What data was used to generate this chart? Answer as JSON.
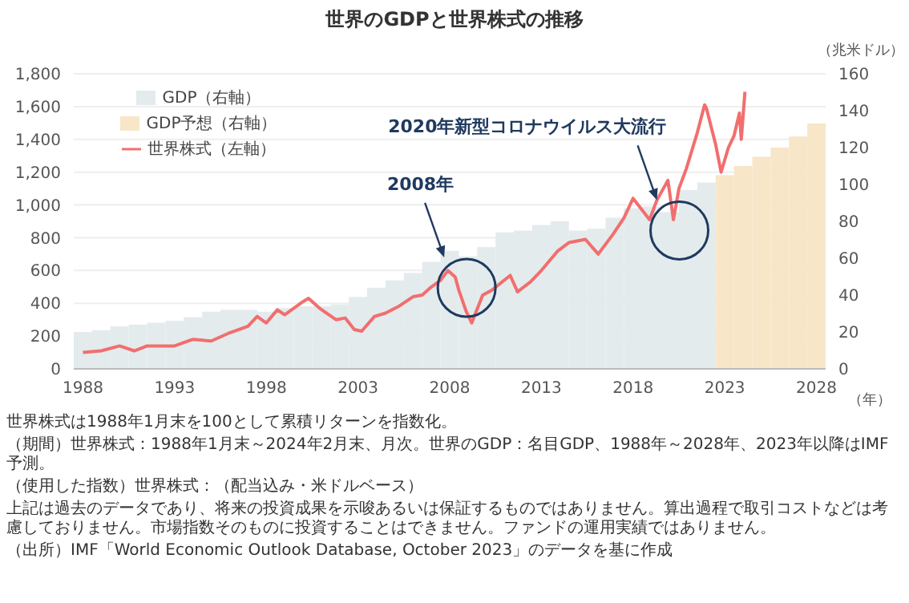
{
  "chart_data": {
    "type": "bar",
    "title": "世界のGDPと世界株式の推移",
    "xlabel": "（年）",
    "y2label": "（兆米ドル）",
    "xlim": [
      1987.5,
      2028.5
    ],
    "xticks": [
      1988,
      1993,
      1998,
      2003,
      2008,
      2013,
      2018,
      2023,
      2028
    ],
    "ylim": [
      0,
      1800
    ],
    "yticks": [
      0,
      200,
      400,
      600,
      800,
      {
        "value": 1000,
        "label": "1,000"
      },
      {
        "value": 1200,
        "label": "1,200"
      },
      {
        "value": 1400,
        "label": "1,400"
      },
      {
        "value": 1600,
        "label": "1,600"
      },
      {
        "value": 1800,
        "label": "1,800"
      }
    ],
    "y2lim": [
      0,
      160
    ],
    "y2ticks": [
      0,
      20,
      40,
      60,
      80,
      100,
      120,
      140,
      160
    ],
    "grid": "y",
    "legend": "top left",
    "series": [
      {
        "name": "GDP（右軸）",
        "axis": "y2",
        "color": "#e3ebed",
        "x": [
          1988,
          1989,
          1990,
          1991,
          1992,
          1993,
          1994,
          1995,
          1996,
          1997,
          1998,
          1999,
          2000,
          2001,
          2002,
          2003,
          2004,
          2005,
          2006,
          2007,
          2008,
          2009,
          2010,
          2011,
          2012,
          2013,
          2014,
          2015,
          2016,
          2017,
          2018,
          2019,
          2020,
          2021,
          2022
        ],
        "values": [
          20,
          21,
          23,
          24,
          25,
          26,
          28,
          31,
          32,
          32,
          31,
          33,
          34,
          34,
          35,
          39,
          44,
          48,
          52,
          58,
          64,
          61,
          66,
          74,
          75,
          78,
          80,
          75,
          76,
          82,
          87,
          88,
          85,
          97,
          101
        ]
      },
      {
        "name": "GDP予想（右軸）",
        "axis": "y2",
        "color": "#f8e6c8",
        "x": [
          2023,
          2024,
          2025,
          2026,
          2027,
          2028
        ],
        "values": [
          105,
          110,
          115,
          120,
          126,
          133
        ]
      },
      {
        "name": "世界株式（左軸）",
        "type": "line",
        "color": "#f26e6e",
        "x": [
          1988.0,
          1989.0,
          1990.0,
          1990.8,
          1991.5,
          1993.0,
          1994.0,
          1995.0,
          1996.0,
          1997.0,
          1997.5,
          1998.0,
          1998.6,
          1999.0,
          1999.5,
          2000.0,
          2000.3,
          2000.9,
          2001.8,
          2002.3,
          2002.8,
          2003.2,
          2003.9,
          2004.5,
          2005.2,
          2006.0,
          2006.5,
          2007.0,
          2007.5,
          2007.9,
          2008.3,
          2008.5,
          2008.9,
          2009.2,
          2009.8,
          2010.3,
          2011.3,
          2011.7,
          2012.4,
          2013.0,
          2013.9,
          2014.5,
          2015.4,
          2016.1,
          2016.9,
          2017.5,
          2018.0,
          2018.9,
          2019.3,
          2019.9,
          2020.2,
          2020.5,
          2020.9,
          2021.5,
          2021.9,
          2022.0,
          2022.5,
          2022.8,
          2023.2,
          2023.5,
          2023.8,
          2023.9,
          2024.1
        ],
        "values": [
          100,
          110,
          140,
          110,
          140,
          140,
          180,
          170,
          220,
          260,
          320,
          280,
          360,
          330,
          370,
          410,
          430,
          370,
          300,
          310,
          240,
          230,
          320,
          340,
          380,
          440,
          450,
          500,
          540,
          600,
          560,
          480,
          350,
          280,
          450,
          480,
          570,
          470,
          530,
          600,
          720,
          770,
          790,
          700,
          820,
          920,
          1040,
          910,
          1030,
          1150,
          910,
          1100,
          1220,
          1440,
          1610,
          1590,
          1370,
          1200,
          1350,
          1420,
          1560,
          1400,
          1690
        ]
      }
    ],
    "annotations": [
      {
        "text": "2008年",
        "x": 2007.7,
        "y": 680
      },
      {
        "text": "2020年新型コロナウイルス大流行",
        "x": 2019.3,
        "y": 1030
      },
      "世界株式は1988年1月末を100として累積リターンを指数化。",
      "（期間）世界株式：1988年1月末～2024年2月末、月次。世界のGDP：名目GDP、1988年～2028年、2023年以降はIMF予測。",
      "（使用した指数）世界株式：（配当込み・米ドルベース）",
      "上記は過去のデータであり、将来の投資成果を示唆あるいは保証するものではありません。算出過程で取引コストなどは考慮しておりません。市場指数そのものに投資することはできません。ファンドの運用実績ではありません。",
      "（出所）IMF「World Economic Outlook Database, October 2023」のデータを基に作成"
    ]
  }
}
